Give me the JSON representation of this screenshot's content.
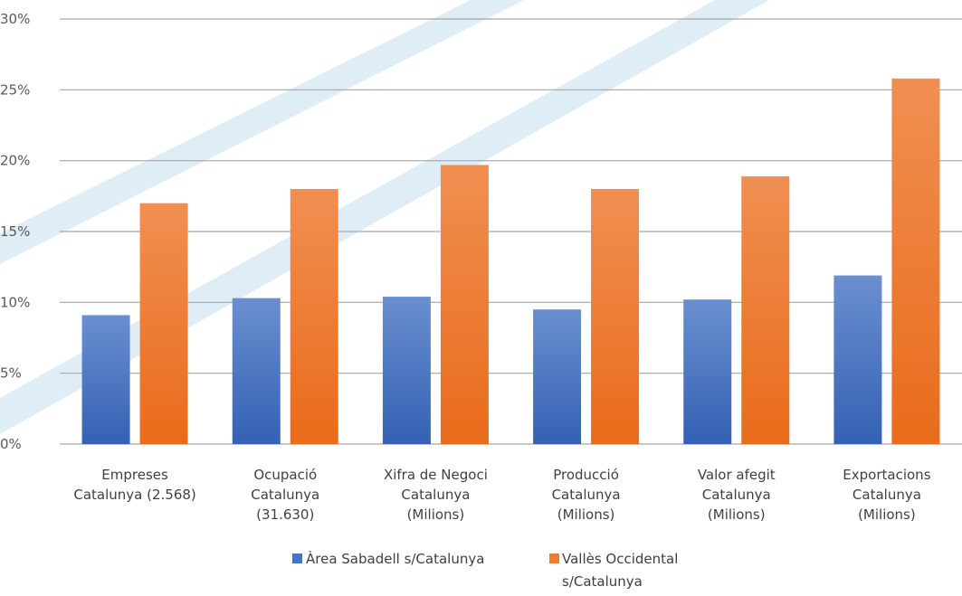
{
  "chart_data": {
    "type": "bar",
    "ylim": [
      0,
      30
    ],
    "y_ticks": [
      "0%",
      "5%",
      "10%",
      "15%",
      "20%",
      "25%",
      "30%"
    ],
    "y_tick_values": [
      0,
      5,
      10,
      15,
      20,
      25,
      30
    ],
    "grid": true,
    "legend_position": "bottom",
    "categories": [
      [
        "Empreses",
        "Catalunya (2.568)"
      ],
      [
        "Ocupació",
        "Catalunya",
        "(31.630)"
      ],
      [
        "Xifra de Negoci",
        "Catalunya",
        "(Milions)"
      ],
      [
        "Producció",
        "Catalunya",
        "(Milions)"
      ],
      [
        "Valor afegit",
        "Catalunya",
        "(Milions)"
      ],
      [
        "Exportacions",
        "Catalunya",
        "(Milions)"
      ]
    ],
    "series": [
      {
        "name": [
          "Àrea Sabadell s/Catalunya"
        ],
        "color": "#4472c4",
        "values": [
          9.1,
          10.3,
          10.4,
          9.5,
          10.2,
          11.9
        ]
      },
      {
        "name": [
          "Vallès Occidental",
          "s/Catalunya"
        ],
        "color": "#ed7d31",
        "values": [
          17.0,
          18.0,
          19.7,
          18.0,
          18.9,
          25.8
        ]
      }
    ]
  },
  "colors": {
    "grid": "#a6a6a6",
    "background_stripe": "#deedf6"
  }
}
